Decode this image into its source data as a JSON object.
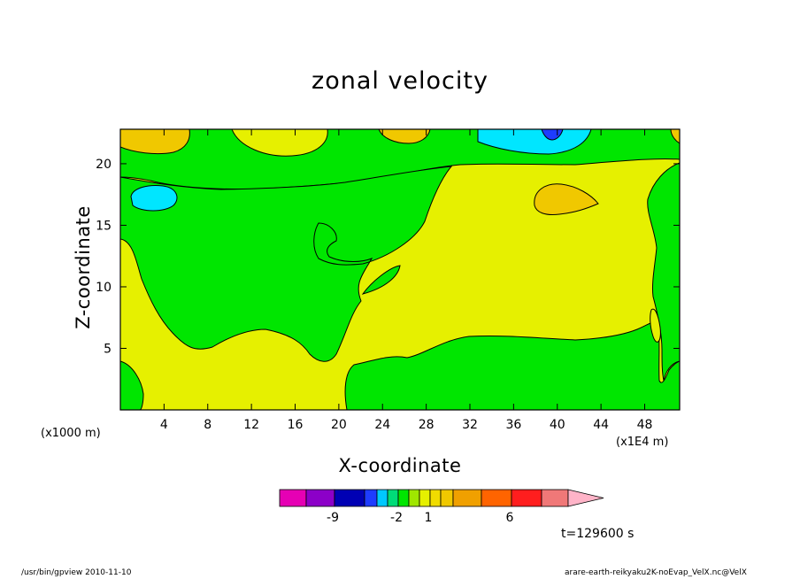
{
  "chart_data": {
    "type": "heatmap",
    "title": "zonal velocity",
    "xlabel": "X-coordinate",
    "ylabel": "Z-coordinate",
    "x_unit_label": "(x1000 m)",
    "x_scale_label": "(x1E4 m)",
    "x_ticks": [
      "4",
      "8",
      "12",
      "16",
      "20",
      "24",
      "28",
      "32",
      "36",
      "40",
      "44",
      "48"
    ],
    "y_ticks": [
      "5",
      "10",
      "15",
      "20"
    ],
    "xlim": [
      0,
      51.2
    ],
    "ylim": [
      0,
      22.8
    ],
    "time_label": "t=129600 s",
    "colorbar": {
      "levels": [
        "-9",
        "-2",
        "1",
        "6"
      ],
      "colors": [
        "#e600b4",
        "#8c00c8",
        "#0000b4",
        "#1e3cff",
        "#00c8ff",
        "#00dc78",
        "#00e600",
        "#a0e600",
        "#e6f000",
        "#f0dc00",
        "#f0c800",
        "#f0a000",
        "#ff6400",
        "#ff1e1e",
        "#f07878",
        "#ffb4c8"
      ]
    },
    "field_colors": {
      "green": "#00e600",
      "yellow": "#e6f000",
      "orange": "#f0c800",
      "cyan": "#00e6ff",
      "blue": "#1e3cff"
    }
  },
  "footer": {
    "left": "/usr/bin/gpview   2010-11-10",
    "right": "arare-earth-reikyaku2K-noEvap_VelX.nc@VelX"
  }
}
